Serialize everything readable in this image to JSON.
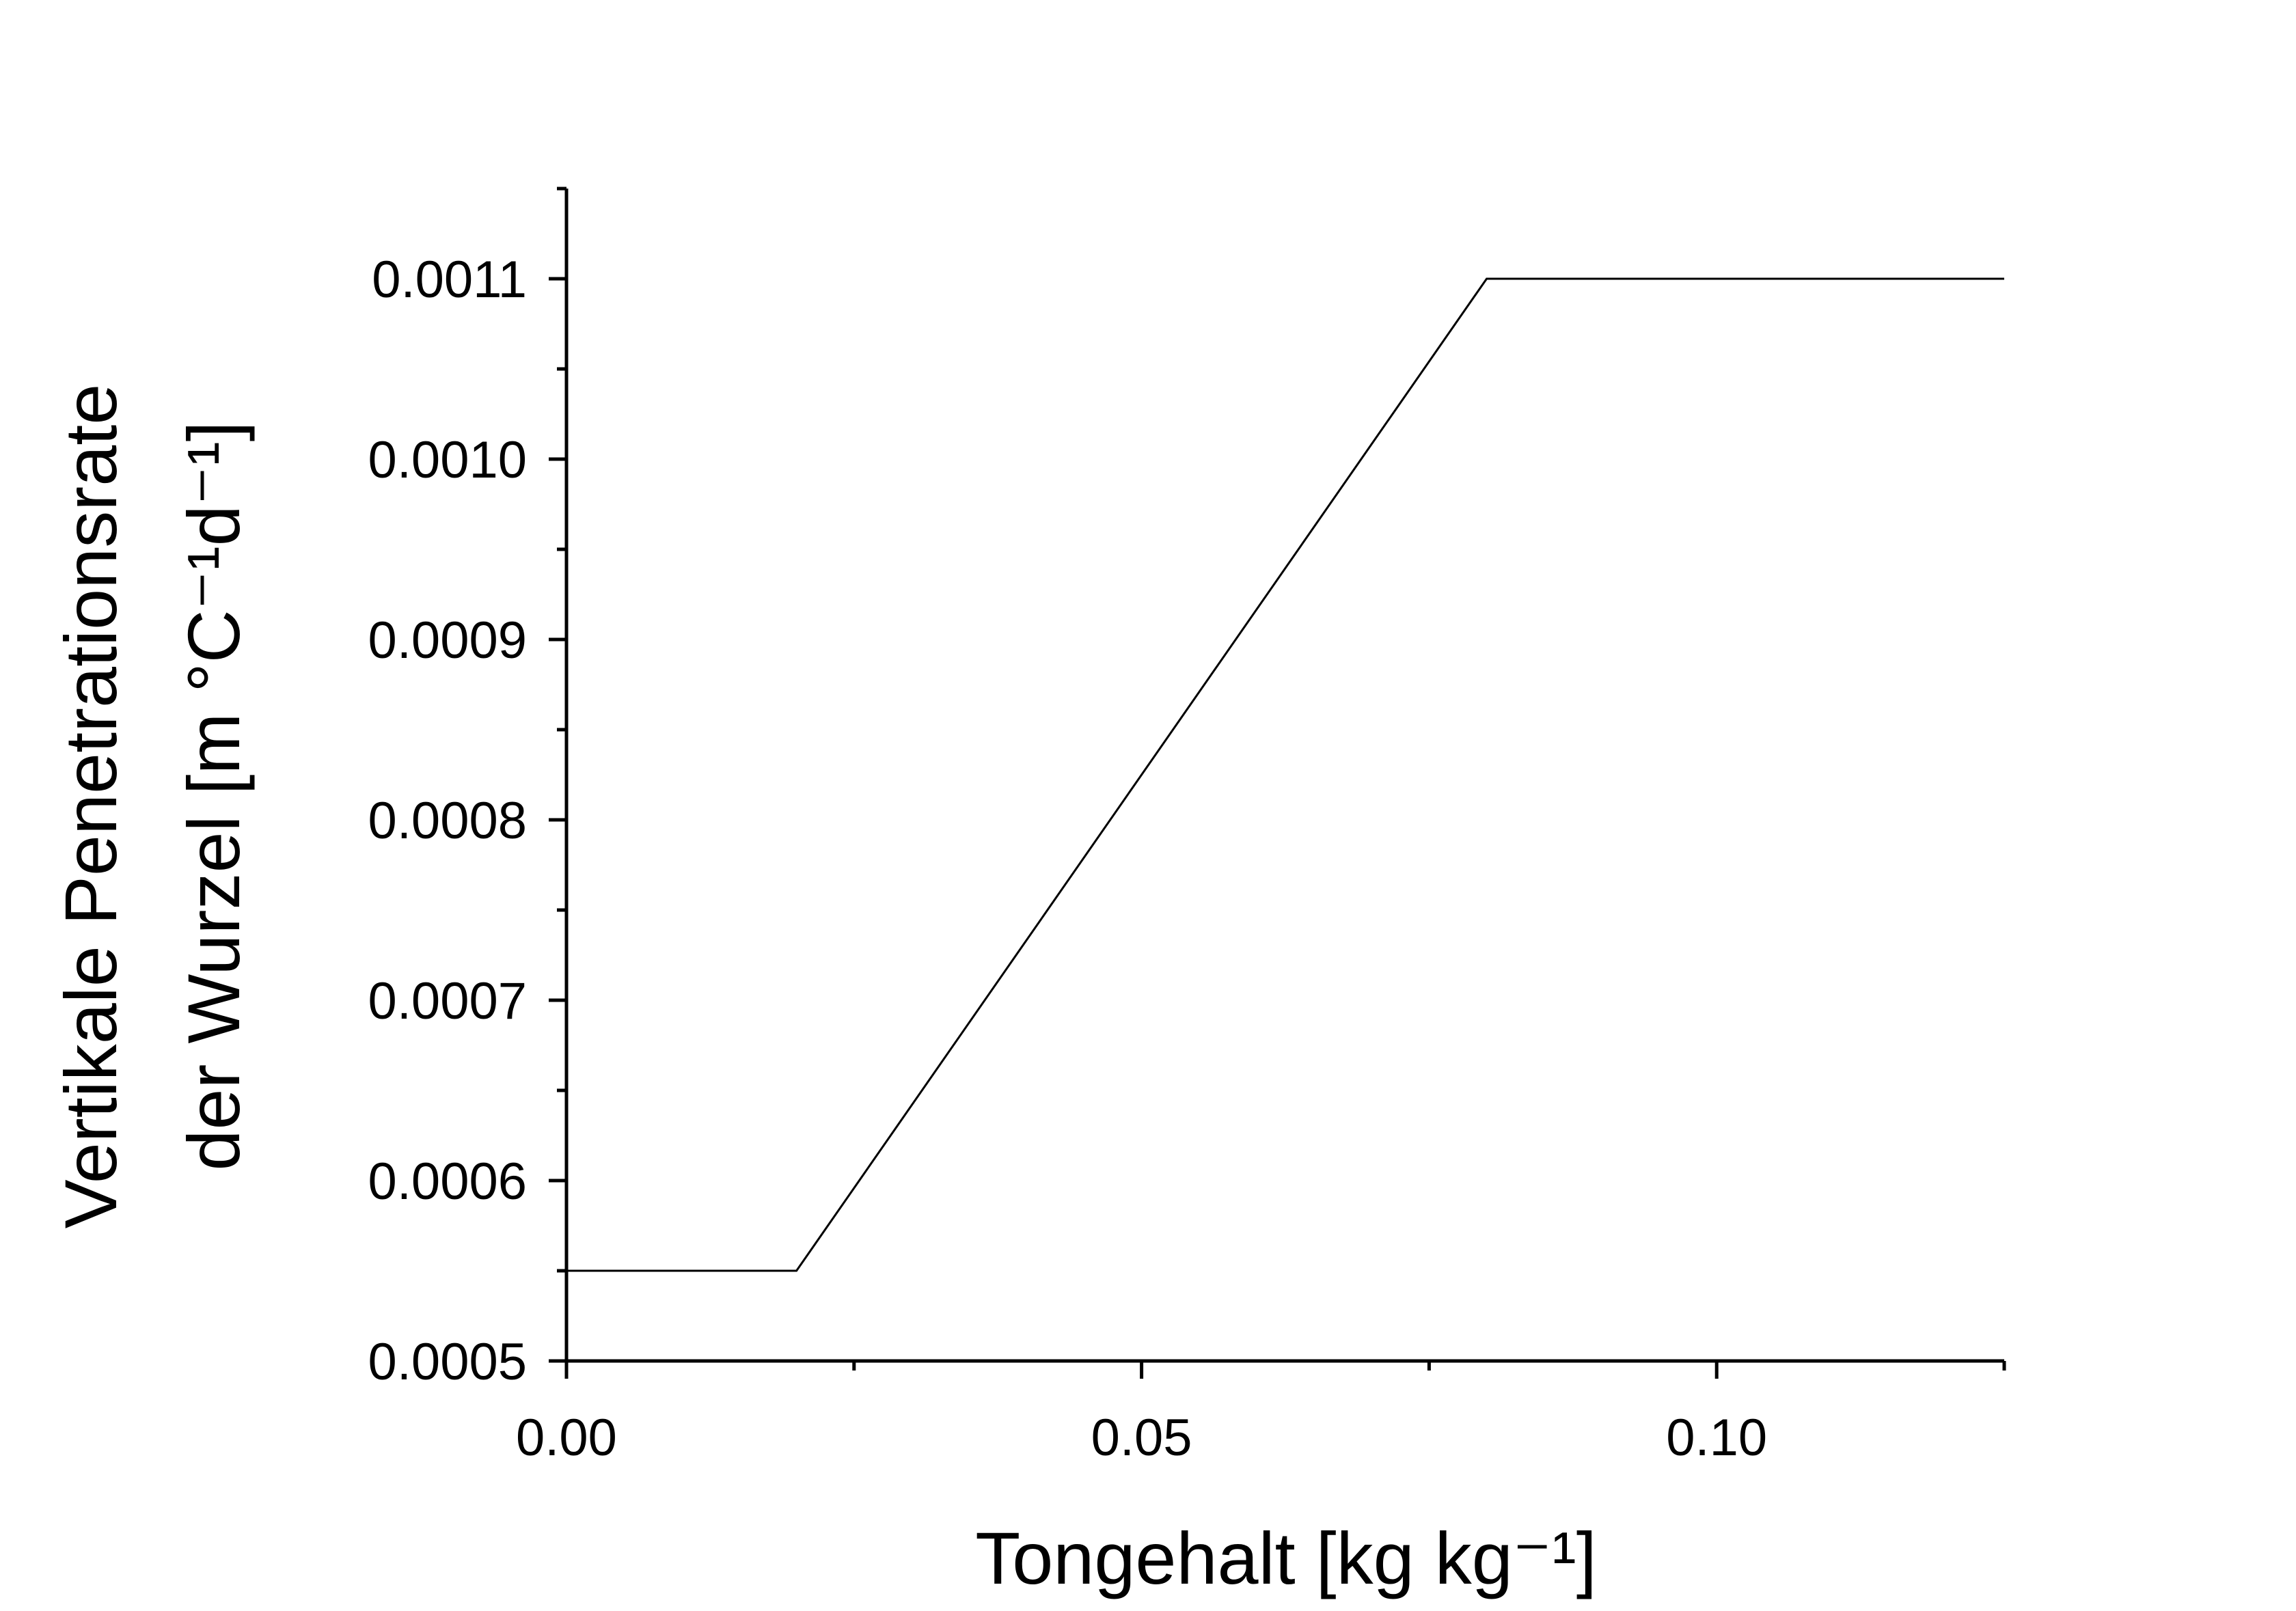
{
  "chart_data": {
    "type": "line",
    "title": "",
    "xlabel": "Tongehalt [kg kg⁻¹]",
    "ylabel_line1": "Vertikale Penetrationsrate",
    "ylabel_line2": "der Wurzel [m °C⁻¹d⁻¹]",
    "xlim": [
      0.0,
      0.125
    ],
    "ylim": [
      0.0005,
      0.00115
    ],
    "x_major_ticks": [
      0.0,
      0.05,
      0.1
    ],
    "x_tick_labels": [
      "0.00",
      "0.05",
      "0.10"
    ],
    "x_minor_ticks": [
      0.025,
      0.075,
      0.125
    ],
    "y_major_ticks": [
      0.0005,
      0.0006,
      0.0007,
      0.0008,
      0.0009,
      0.001,
      0.0011
    ],
    "y_tick_labels": [
      "0.0005",
      "0.0006",
      "0.0007",
      "0.0008",
      "0.0009",
      "0.0010",
      "0.0011"
    ],
    "y_minor_ticks": [
      0.00055,
      0.00065,
      0.00075,
      0.00085,
      0.00095,
      0.00105,
      0.00115
    ],
    "grid": false,
    "series": [
      {
        "x": [
          0.0,
          0.02,
          0.08,
          0.125
        ],
        "y": [
          0.00055,
          0.00055,
          0.0011,
          0.0011
        ],
        "color": "#000000"
      }
    ]
  }
}
